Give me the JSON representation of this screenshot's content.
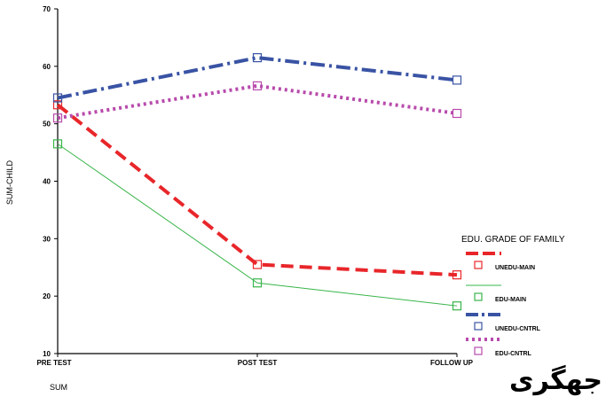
{
  "chart_data": {
    "type": "line",
    "ylabel": "SUM-CHILD",
    "xlabel": "",
    "categories": [
      "PRE TEST",
      "POST TEST",
      "FOLLOW UP"
    ],
    "ylim": [
      10,
      70
    ],
    "yticks": [
      10,
      20,
      30,
      40,
      50,
      60,
      70
    ],
    "grid": false,
    "legend": {
      "title": "EDU. GRADE OF FAMILY",
      "placement": "right"
    },
    "series": [
      {
        "name": "UNEDU-MAIN",
        "values": [
          53.3,
          25.5,
          23.7
        ],
        "color": "#e8262a",
        "style": "dashed-thick"
      },
      {
        "name": "EDU-MAIN",
        "values": [
          46.5,
          22.3,
          18.3
        ],
        "color": "#39b54a",
        "style": "solid-thin"
      },
      {
        "name": "UNEDU-CNTRL",
        "values": [
          54.5,
          61.5,
          57.6
        ],
        "color": "#3953a4",
        "style": "dash-dot-thick"
      },
      {
        "name": "EDU-CNTRL",
        "values": [
          51.0,
          56.6,
          51.8
        ],
        "color": "#b84aac",
        "style": "dotted-thick"
      }
    ]
  },
  "footer": {
    "caption": "SUM",
    "persian_fragment": "جهگری"
  }
}
